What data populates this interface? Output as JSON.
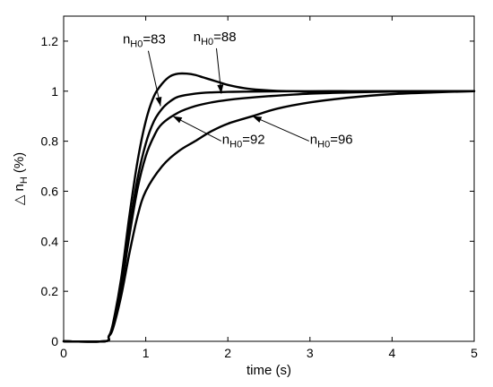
{
  "chart_data": {
    "type": "line",
    "title": "",
    "xlabel": "time (s)",
    "ylabel": "△ n",
    "ylabel_sub": "H",
    "ylabel_unit": "(%)",
    "xlim": [
      0,
      5
    ],
    "ylim": [
      0,
      1.3
    ],
    "xticks": [
      0,
      1,
      2,
      3,
      4,
      5
    ],
    "yticks": [
      0,
      0.2,
      0.4,
      0.6,
      0.8,
      1,
      1.2
    ],
    "xtick_labels": [
      "0",
      "1",
      "2",
      "3",
      "4",
      "5"
    ],
    "ytick_labels": [
      "0",
      "0.2",
      "0.4",
      "0.6",
      "0.8",
      "1",
      "1.2"
    ],
    "grid": false,
    "legend": "none",
    "series": [
      {
        "name": "nH0=83",
        "x": [
          0,
          0.5,
          0.55,
          0.6,
          0.7,
          0.8,
          0.9,
          1.0,
          1.1,
          1.2,
          1.3,
          1.4,
          1.5,
          1.6,
          1.7,
          1.8,
          1.9,
          2.0,
          2.2,
          2.4,
          2.6,
          2.8,
          3.0,
          3.5,
          4.0,
          5.0
        ],
        "y": [
          0,
          0,
          0.02,
          0.07,
          0.25,
          0.5,
          0.72,
          0.88,
          0.98,
          1.03,
          1.06,
          1.07,
          1.07,
          1.065,
          1.055,
          1.045,
          1.035,
          1.025,
          1.012,
          1.005,
          1.001,
          1.0,
          0.998,
          0.999,
          1.0,
          1.0
        ]
      },
      {
        "name": "nH0=88",
        "x": [
          0,
          0.5,
          0.55,
          0.6,
          0.7,
          0.8,
          0.9,
          1.0,
          1.1,
          1.2,
          1.3,
          1.4,
          1.6,
          1.8,
          2.0,
          2.2,
          2.5,
          3.0,
          3.5,
          4.0,
          5.0
        ],
        "y": [
          0,
          0,
          0.02,
          0.06,
          0.22,
          0.45,
          0.65,
          0.79,
          0.88,
          0.93,
          0.96,
          0.978,
          0.99,
          0.995,
          0.997,
          0.998,
          0.999,
          1.0,
          1.0,
          1.0,
          1.0
        ]
      },
      {
        "name": "nH0=92",
        "x": [
          0,
          0.5,
          0.55,
          0.6,
          0.7,
          0.8,
          0.9,
          1.0,
          1.1,
          1.2,
          1.4,
          1.6,
          1.8,
          2.0,
          2.2,
          2.5,
          3.0,
          3.5,
          4.0,
          4.5,
          5.0
        ],
        "y": [
          0,
          0,
          0.02,
          0.06,
          0.21,
          0.42,
          0.61,
          0.74,
          0.82,
          0.87,
          0.915,
          0.94,
          0.955,
          0.965,
          0.972,
          0.98,
          0.99,
          0.995,
          0.998,
          0.999,
          1.0
        ]
      },
      {
        "name": "nH0=96",
        "x": [
          0,
          0.5,
          0.55,
          0.6,
          0.7,
          0.8,
          0.9,
          1.0,
          1.2,
          1.4,
          1.6,
          1.8,
          2.0,
          2.3,
          2.6,
          3.0,
          3.5,
          4.0,
          4.5,
          5.0
        ],
        "y": [
          0,
          0,
          0.02,
          0.05,
          0.18,
          0.35,
          0.5,
          0.6,
          0.7,
          0.76,
          0.8,
          0.84,
          0.87,
          0.9,
          0.93,
          0.955,
          0.975,
          0.988,
          0.995,
          1.0
        ]
      }
    ],
    "annotations": [
      {
        "main": "n",
        "sub": "H0",
        "rest": "=83",
        "text_at": [
          0.72,
          1.19
        ],
        "arrow_to": [
          1.18,
          0.94
        ]
      },
      {
        "main": "n",
        "sub": "H0",
        "rest": "=88",
        "text_at": [
          1.58,
          1.2
        ],
        "arrow_to": [
          1.92,
          0.99
        ]
      },
      {
        "main": "n",
        "sub": "H0",
        "rest": "=92",
        "text_at": [
          1.93,
          0.79
        ],
        "arrow_to": [
          1.33,
          0.9
        ]
      },
      {
        "main": "n",
        "sub": "H0",
        "rest": "=96",
        "text_at": [
          3.0,
          0.79
        ],
        "arrow_to": [
          2.3,
          0.9
        ]
      }
    ]
  }
}
